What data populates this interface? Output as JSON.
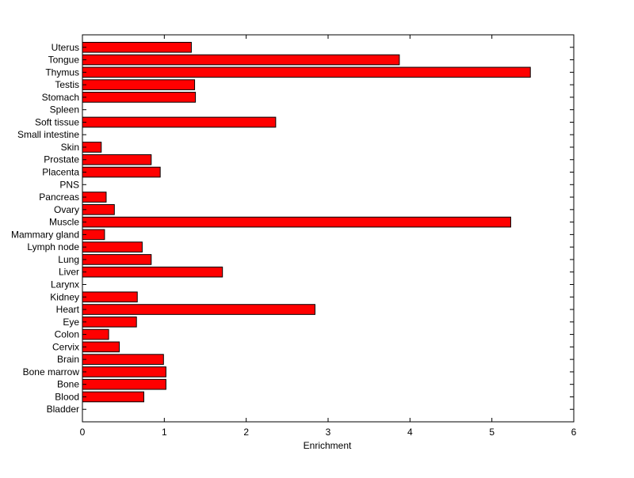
{
  "chart_data": {
    "type": "bar",
    "orientation": "horizontal",
    "title": "",
    "xlabel": "Enrichment",
    "ylabel": "",
    "xlim": [
      0,
      6
    ],
    "xticks": [
      "0",
      "1",
      "2",
      "3",
      "4",
      "5",
      "6"
    ],
    "grid": false,
    "bar_color": "#ff0000",
    "categories": [
      "Bladder",
      "Blood",
      "Bone",
      "Bone marrow",
      "Brain",
      "Cervix",
      "Colon",
      "Eye",
      "Heart",
      "Kidney",
      "Larynx",
      "Liver",
      "Lung",
      "Lymph node",
      "Mammary gland",
      "Muscle",
      "Ovary",
      "Pancreas",
      "PNS",
      "Placenta",
      "Prostate",
      "Skin",
      "Small intestine",
      "Soft tissue",
      "Spleen",
      "Stomach",
      "Testis",
      "Thymus",
      "Tongue",
      "Uterus"
    ],
    "values": [
      0,
      0.75,
      1.02,
      1.02,
      0.99,
      0.45,
      0.32,
      0.66,
      2.84,
      0.67,
      0,
      1.71,
      0.84,
      0.73,
      0.27,
      5.23,
      0.39,
      0.29,
      0,
      0.95,
      0.84,
      0.23,
      0,
      2.36,
      0,
      1.38,
      1.37,
      5.47,
      3.87,
      1.33
    ]
  }
}
